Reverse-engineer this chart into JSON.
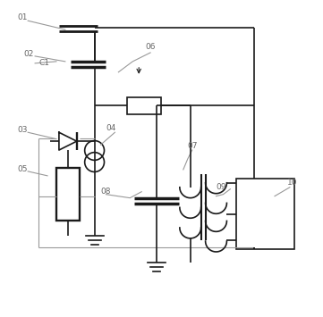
{
  "bg_color": "#ffffff",
  "line_color": "#1a1a1a",
  "gray_color": "#999999",
  "label_color": "#666666",
  "figsize": [
    3.61,
    3.55
  ],
  "dpi": 100
}
